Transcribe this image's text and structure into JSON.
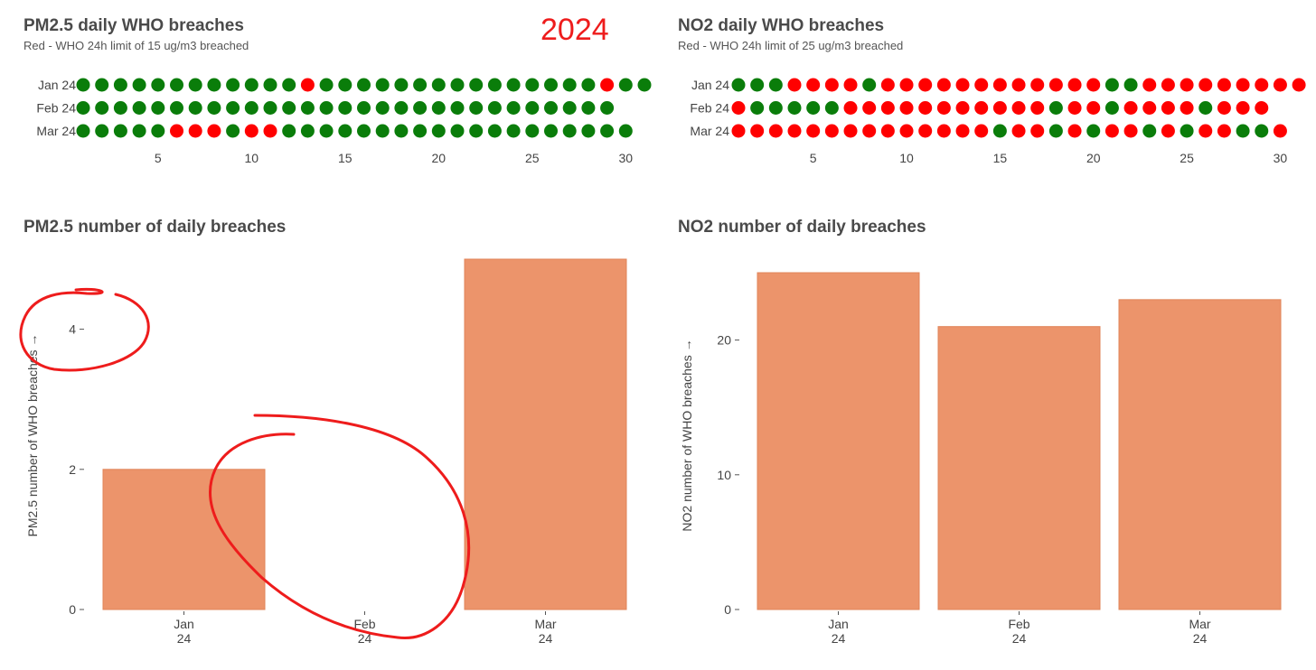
{
  "annotation_year": "2024",
  "colors": {
    "breach": "#ff0000",
    "ok": "#0a7d0a",
    "bar": "#ec946b",
    "bar_stroke": "#e08458",
    "scribble": "#ee1c1c"
  },
  "chart_data": [
    {
      "type": "scatter",
      "title": "PM2.5 daily WHO breaches",
      "subtitle": "Red - WHO 24h limit of 15 ug/m3 breached",
      "rows": [
        "Jan 24",
        "Feb 24",
        "Mar 24"
      ],
      "x_ticks": [
        5,
        10,
        15,
        20,
        25,
        30
      ],
      "xlim": [
        1,
        31
      ],
      "breach_days": {
        "Jan 24": [
          13,
          29
        ],
        "Feb 24": [],
        "Mar 24": [
          6,
          7,
          8,
          10,
          11
        ]
      },
      "days_in_month": {
        "Jan 24": 31,
        "Feb 24": 29,
        "Mar 24": 30
      }
    },
    {
      "type": "scatter",
      "title": "NO2 daily WHO breaches",
      "subtitle": "Red - WHO 24h limit of 25 ug/m3 breached",
      "rows": [
        "Jan 24",
        "Feb 24",
        "Mar 24"
      ],
      "x_ticks": [
        5,
        10,
        15,
        20,
        25,
        30
      ],
      "xlim": [
        1,
        31
      ],
      "breach_days": {
        "Jan 24": [
          4,
          5,
          6,
          7,
          9,
          10,
          11,
          12,
          13,
          14,
          15,
          16,
          17,
          18,
          19,
          20,
          23,
          24,
          25,
          26,
          27,
          28,
          29,
          30,
          31
        ],
        "Feb 24": [
          1,
          7,
          8,
          9,
          10,
          11,
          12,
          13,
          14,
          15,
          16,
          17,
          19,
          20,
          22,
          23,
          24,
          25,
          27,
          28,
          29
        ],
        "Mar 24": [
          1,
          2,
          3,
          4,
          5,
          6,
          7,
          8,
          9,
          10,
          11,
          12,
          13,
          14,
          16,
          17,
          19,
          21,
          22,
          24,
          26,
          27,
          30
        ]
      },
      "days_in_month": {
        "Jan 24": 31,
        "Feb 24": 29,
        "Mar 24": 30
      }
    },
    {
      "type": "bar",
      "title": "PM2.5 number of daily breaches",
      "ylabel": "PM2.5 number of WHO breaches →",
      "categories": [
        [
          "Jan",
          "24"
        ],
        [
          "Feb",
          "24"
        ],
        [
          "Mar",
          "24"
        ]
      ],
      "values": [
        2,
        0,
        5
      ],
      "y_ticks": [
        0,
        2,
        4
      ],
      "ylim": [
        0,
        5
      ]
    },
    {
      "type": "bar",
      "title": "NO2 number of daily breaches",
      "ylabel": "NO2 number of WHO breaches →",
      "categories": [
        [
          "Jan",
          "24"
        ],
        [
          "Feb",
          "24"
        ],
        [
          "Mar",
          "24"
        ]
      ],
      "values": [
        25,
        21,
        23
      ],
      "y_ticks": [
        0,
        10,
        20
      ],
      "ylim": [
        0,
        25
      ]
    }
  ]
}
